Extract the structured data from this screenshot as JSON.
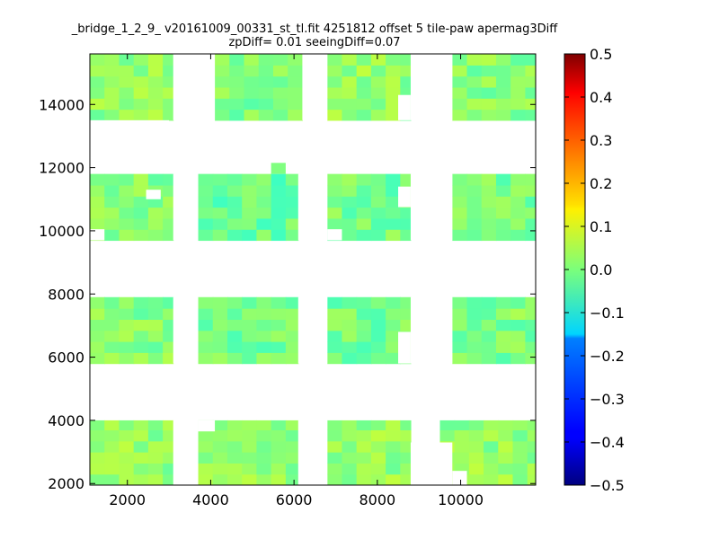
{
  "chart_data": {
    "type": "heatmap",
    "title_line1": "_bridge_1_2_9_ v20161009_00331_st_tl.fit 4251812 offset 5 tile-paw apermag3Diff",
    "title_line2": "zpDiff= 0.01 seeingDiff=0.07",
    "xlim": [
      1100,
      11800
    ],
    "ylim": [
      1950,
      15600
    ],
    "x_ticks": [
      2000,
      4000,
      6000,
      8000,
      10000
    ],
    "y_ticks": [
      2000,
      4000,
      6000,
      8000,
      10000,
      12000,
      14000
    ],
    "colorbar": {
      "colormap": "jet",
      "range": [
        -0.5,
        0.5
      ],
      "ticks": [
        "0.5",
        "0.4",
        "0.3",
        "0.2",
        "0.1",
        "0.0",
        "−0.1",
        "−0.2",
        "−0.3",
        "−0.4",
        "−0.5"
      ]
    },
    "cell_size": 350,
    "grid": false,
    "value_range_observed": [
      -0.08,
      0.1
    ],
    "detector_blocks": [
      {
        "x": [
          1100,
          3100
        ],
        "y": [
          13500,
          15600
        ],
        "value": 0.02
      },
      {
        "x": [
          4100,
          6200
        ],
        "y": [
          13500,
          15600
        ],
        "value": 0.0
      },
      {
        "x": [
          6800,
          8800
        ],
        "y": [
          13500,
          15600
        ],
        "value": 0.02
      },
      {
        "x": [
          9800,
          11800
        ],
        "y": [
          13500,
          15600
        ],
        "value": 0.01
      },
      {
        "x": [
          1100,
          3100
        ],
        "y": [
          9700,
          11800
        ],
        "value": 0.0
      },
      {
        "x": [
          3700,
          6100
        ],
        "y": [
          9700,
          11800
        ],
        "value": -0.02
      },
      {
        "x": [
          6800,
          8800
        ],
        "y": [
          9700,
          11800
        ],
        "value": -0.01
      },
      {
        "x": [
          9800,
          11800
        ],
        "y": [
          9700,
          11800
        ],
        "value": -0.01
      },
      {
        "x": [
          1100,
          3100
        ],
        "y": [
          5800,
          7900
        ],
        "value": 0.01
      },
      {
        "x": [
          3700,
          6100
        ],
        "y": [
          5800,
          7900
        ],
        "value": -0.01
      },
      {
        "x": [
          6800,
          8800
        ],
        "y": [
          5800,
          7900
        ],
        "value": -0.01
      },
      {
        "x": [
          9800,
          11800
        ],
        "y": [
          5800,
          7900
        ],
        "value": 0.0
      },
      {
        "x": [
          1100,
          3100
        ],
        "y": [
          1950,
          4000
        ],
        "value": 0.02
      },
      {
        "x": [
          3700,
          6100
        ],
        "y": [
          1950,
          4000
        ],
        "value": 0.02
      },
      {
        "x": [
          6800,
          8800
        ],
        "y": [
          1950,
          4000
        ],
        "value": 0.02
      },
      {
        "x": [
          9500,
          11800
        ],
        "y": [
          1950,
          4000
        ],
        "value": 0.02
      }
    ],
    "masked_regions": [
      {
        "x": [
          1100,
          3000
        ],
        "y": [
          13000,
          13500
        ]
      },
      {
        "x": [
          3100,
          4100
        ],
        "y": [
          13500,
          15600
        ]
      },
      {
        "x": [
          6200,
          6800
        ],
        "y": [
          13500,
          15600
        ]
      },
      {
        "x": [
          8500,
          8800
        ],
        "y": [
          13500,
          14300
        ]
      },
      {
        "x": [
          8800,
          9800
        ],
        "y": [
          13500,
          15600
        ]
      },
      {
        "x": [
          2450,
          2800
        ],
        "y": [
          11000,
          11300
        ]
      },
      {
        "x": [
          3100,
          3700
        ],
        "y": [
          9700,
          11800
        ]
      },
      {
        "x": [
          1100,
          1450
        ],
        "y": [
          9700,
          10050
        ]
      },
      {
        "x": [
          6100,
          6800
        ],
        "y": [
          9700,
          11800
        ]
      },
      {
        "x": [
          8800,
          9800
        ],
        "y": [
          9700,
          11800
        ]
      },
      {
        "x": [
          8500,
          8800
        ],
        "y": [
          10750,
          11400
        ]
      },
      {
        "x": [
          6800,
          7150
        ],
        "y": [
          9700,
          10050
        ]
      },
      {
        "x": [
          3100,
          3700
        ],
        "y": [
          5800,
          7900
        ]
      },
      {
        "x": [
          6100,
          6800
        ],
        "y": [
          5800,
          7900
        ]
      },
      {
        "x": [
          8800,
          9800
        ],
        "y": [
          5800,
          7900
        ]
      },
      {
        "x": [
          8500,
          8800
        ],
        "y": [
          5800,
          6800
        ]
      },
      {
        "x": [
          3100,
          3700
        ],
        "y": [
          1950,
          4000
        ]
      },
      {
        "x": [
          3700,
          4100
        ],
        "y": [
          3650,
          4000
        ]
      },
      {
        "x": [
          6100,
          6800
        ],
        "y": [
          1950,
          4000
        ]
      },
      {
        "x": [
          8800,
          9800
        ],
        "y": [
          1950,
          3300
        ]
      },
      {
        "x": [
          9150,
          9500
        ],
        "y": [
          3300,
          4000
        ]
      },
      {
        "x": [
          9800,
          10150
        ],
        "y": [
          1950,
          2400
        ]
      }
    ],
    "extra_cells": [
      {
        "x": [
          5450,
          5800
        ],
        "y": [
          11800,
          12150
        ],
        "value": 0.0
      }
    ]
  }
}
